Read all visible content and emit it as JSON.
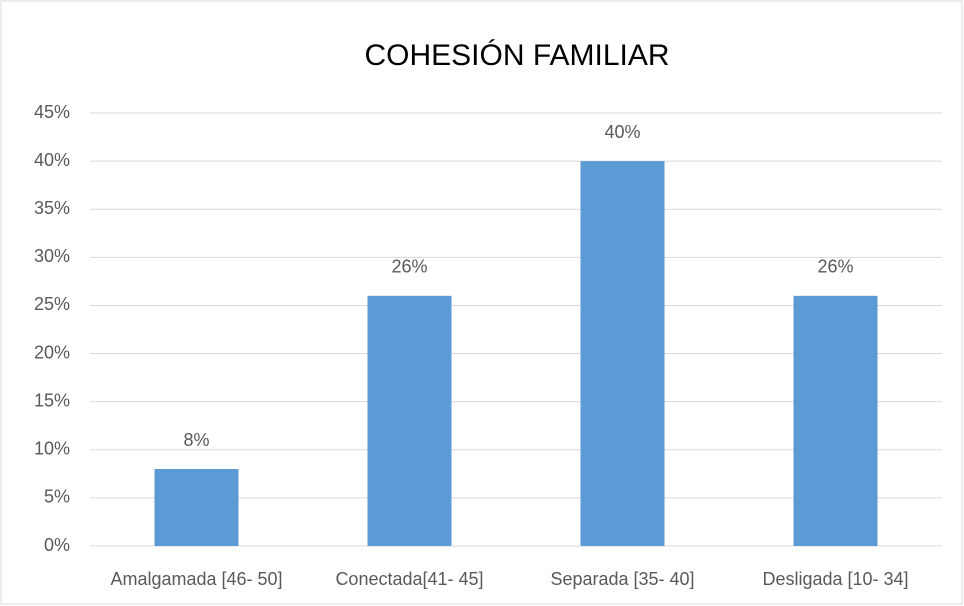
{
  "chart_data": {
    "type": "bar",
    "title": "COHESIÓN FAMILIAR",
    "categories": [
      "Amalgamada [46- 50]",
      "Conectada[41- 45]",
      "Separada [35- 40]",
      "Desligada [10- 34]"
    ],
    "values": [
      8,
      26,
      40,
      26
    ],
    "value_labels": [
      "8%",
      "26%",
      "40%",
      "26%"
    ],
    "color": "#5b9bd5",
    "ylim": [
      0,
      45
    ],
    "yticks": [
      {
        "value": 0,
        "label": "0%"
      },
      {
        "value": 5,
        "label": "5%"
      },
      {
        "value": 10,
        "label": "10%"
      },
      {
        "value": 15,
        "label": "15%"
      },
      {
        "value": 20,
        "label": "20%"
      },
      {
        "value": 25,
        "label": "25%"
      },
      {
        "value": 30,
        "label": "30%"
      },
      {
        "value": 35,
        "label": "35%"
      },
      {
        "value": 40,
        "label": "40%"
      },
      {
        "value": 45,
        "label": "45%"
      }
    ],
    "grid": true
  }
}
